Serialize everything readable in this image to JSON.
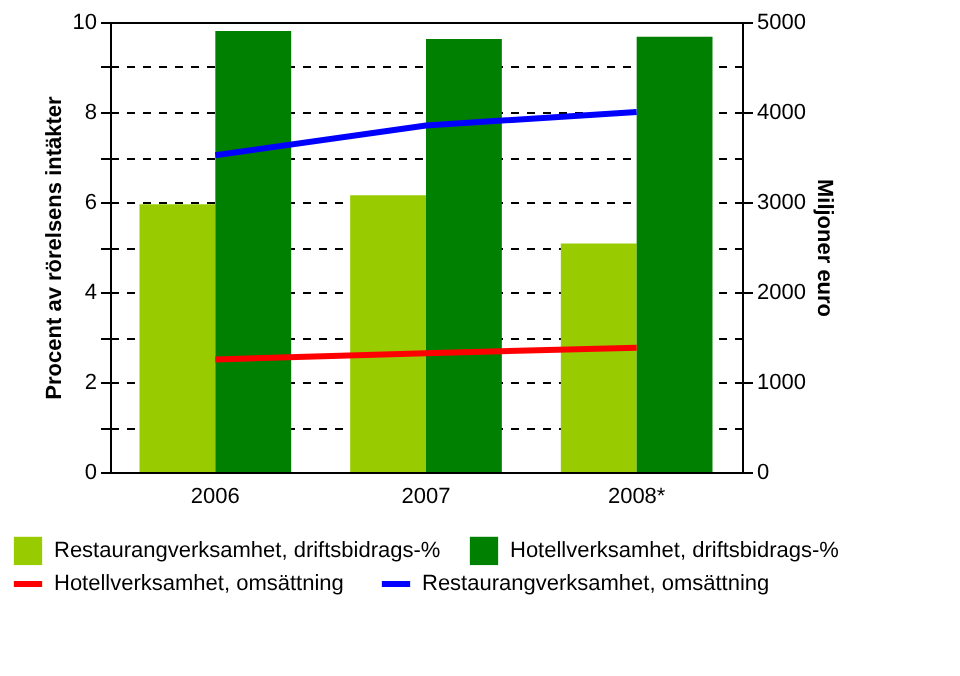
{
  "chart_data": {
    "type": "bar",
    "categories": [
      "2006",
      "2007",
      "2008*"
    ],
    "ylabel": "Procent av rörelsens intäkter",
    "y2label": "Miljoner euro",
    "series": [
      {
        "name": "Restaurangverksamhet, driftsbidrags-%",
        "color": "#99cc00",
        "values": [
          5.95,
          6.15,
          5.08
        ]
      },
      {
        "name": "Hotellverksamhet, driftsbidrags-%",
        "color": "#008000",
        "values": [
          9.8,
          9.62,
          9.67
        ]
      },
      {
        "name": "Hotellverksamhet, omsättning",
        "type": "line",
        "axis": "y2",
        "color": "#ff0000",
        "values": [
          1250,
          1320,
          1380
        ]
      },
      {
        "name": "Restaurangverksamhet, omsättning",
        "type": "line",
        "axis": "y2",
        "color": "#0000ff",
        "values": [
          3520,
          3850,
          4000
        ]
      }
    ],
    "ylim": [
      0,
      10
    ],
    "yticks": [
      0,
      {
        "value": 1,
        "label": null
      },
      2,
      {
        "value": 3,
        "label": null
      },
      4,
      {
        "value": 5,
        "label": null
      },
      6,
      {
        "value": 7,
        "label": null
      },
      8,
      {
        "value": 9,
        "label": null
      },
      10
    ],
    "y2lim": [
      0,
      5000
    ],
    "y2ticks": [
      0,
      1000,
      2000,
      3000,
      4000,
      5000
    ],
    "grid": "y",
    "legend": "bottom"
  }
}
